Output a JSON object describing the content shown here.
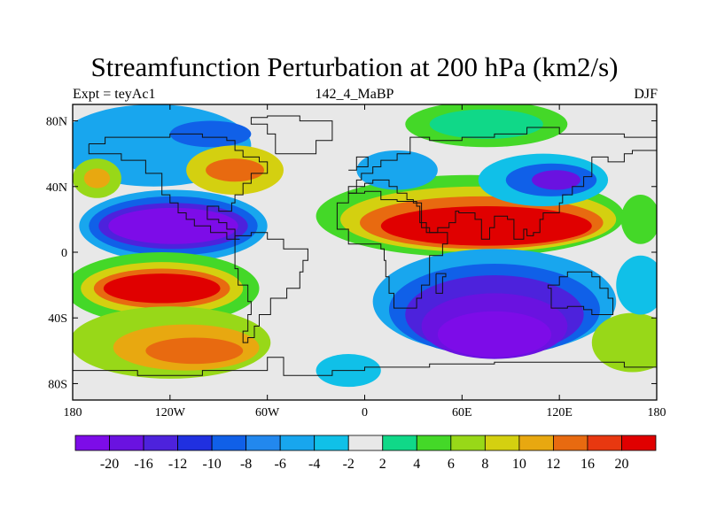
{
  "title": "Streamfunction Perturbation at 200 hPa (km2/s)",
  "left_string": "Expt = teyAc1",
  "center_string": "142_4_MaBP",
  "right_string": "DJF",
  "map": {
    "x_ticks": [
      "180",
      "120W",
      "60W",
      "0",
      "60E",
      "120E",
      "180"
    ],
    "y_ticks": [
      "80N",
      "40N",
      "0",
      "40S",
      "80S"
    ],
    "lon_range": [
      -180,
      180
    ],
    "lat_range": [
      -90,
      90
    ]
  },
  "colorbar": {
    "labels": [
      "-20",
      "-16",
      "-12",
      "-10",
      "-8",
      "-6",
      "-4",
      "-2",
      "2",
      "4",
      "6",
      "8",
      "10",
      "12",
      "16",
      "20"
    ],
    "colors": [
      "#7d0ce8",
      "#6a12e0",
      "#4d22dc",
      "#2030e0",
      "#1060e8",
      "#2288ee",
      "#18a6ee",
      "#10c0e8",
      "#e8e8e8",
      "#10d888",
      "#44d828",
      "#98d818",
      "#d4d010",
      "#e8a810",
      "#e86a10",
      "#e83810",
      "#e00000"
    ]
  }
}
